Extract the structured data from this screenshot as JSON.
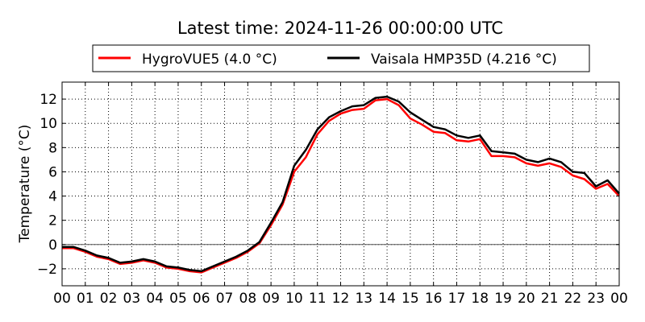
{
  "chart_data": {
    "type": "line",
    "title": "Latest time: 2024-11-26 00:00:00 UTC",
    "xlabel": "",
    "ylabel": "Temperature (°C)",
    "xlim": [
      0,
      24
    ],
    "ylim": [
      -3.4,
      13.4
    ],
    "grid": true,
    "legend_position": "top-center",
    "xticks": [
      0,
      1,
      2,
      3,
      4,
      5,
      6,
      7,
      8,
      9,
      10,
      11,
      12,
      13,
      14,
      15,
      16,
      17,
      18,
      19,
      20,
      21,
      22,
      23,
      24
    ],
    "xtick_labels": [
      "00",
      "01",
      "02",
      "03",
      "04",
      "05",
      "06",
      "07",
      "08",
      "09",
      "10",
      "11",
      "12",
      "13",
      "14",
      "15",
      "16",
      "17",
      "18",
      "19",
      "20",
      "21",
      "22",
      "23",
      "00"
    ],
    "yticks": [
      -2,
      0,
      2,
      4,
      6,
      8,
      10,
      12
    ],
    "ytick_labels": [
      "−2",
      "0",
      "2",
      "4",
      "6",
      "8",
      "10",
      "12"
    ],
    "x": [
      0,
      0.5,
      1,
      1.5,
      2,
      2.5,
      3,
      3.5,
      4,
      4.5,
      5,
      5.5,
      6,
      6.5,
      7,
      7.5,
      8,
      8.5,
      9,
      9.5,
      10,
      10.5,
      11,
      11.5,
      12,
      12.5,
      13,
      13.5,
      14,
      14.5,
      15,
      15.5,
      16,
      16.5,
      17,
      17.5,
      18,
      18.5,
      19,
      19.5,
      20,
      20.5,
      21,
      21.5,
      22,
      22.5,
      23,
      23.5,
      24
    ],
    "series": [
      {
        "name": "HygroVUE5 (4.0 °C)",
        "color": "#ff0000",
        "values": [
          -0.3,
          -0.3,
          -0.6,
          -1.0,
          -1.2,
          -1.6,
          -1.5,
          -1.3,
          -1.5,
          -1.9,
          -2.0,
          -2.2,
          -2.3,
          -1.9,
          -1.5,
          -1.1,
          -0.6,
          0.1,
          1.6,
          3.3,
          6.0,
          7.2,
          9.1,
          10.2,
          10.8,
          11.1,
          11.2,
          11.9,
          12.0,
          11.5,
          10.4,
          9.9,
          9.3,
          9.2,
          8.6,
          8.5,
          8.7,
          7.3,
          7.3,
          7.2,
          6.7,
          6.5,
          6.7,
          6.4,
          5.7,
          5.4,
          4.6,
          5.0,
          4.0
        ]
      },
      {
        "name": "Vaisala HMP35D (4.216 °C)",
        "color": "#000000",
        "values": [
          -0.2,
          -0.2,
          -0.5,
          -0.9,
          -1.1,
          -1.5,
          -1.4,
          -1.2,
          -1.4,
          -1.8,
          -1.9,
          -2.1,
          -2.2,
          -1.8,
          -1.4,
          -1.0,
          -0.5,
          0.2,
          1.8,
          3.5,
          6.5,
          7.8,
          9.5,
          10.5,
          11.0,
          11.4,
          11.5,
          12.1,
          12.2,
          11.8,
          10.9,
          10.3,
          9.7,
          9.5,
          9.0,
          8.8,
          9.0,
          7.7,
          7.6,
          7.5,
          7.0,
          6.8,
          7.1,
          6.8,
          6.0,
          5.9,
          4.8,
          5.3,
          4.2
        ]
      }
    ]
  }
}
